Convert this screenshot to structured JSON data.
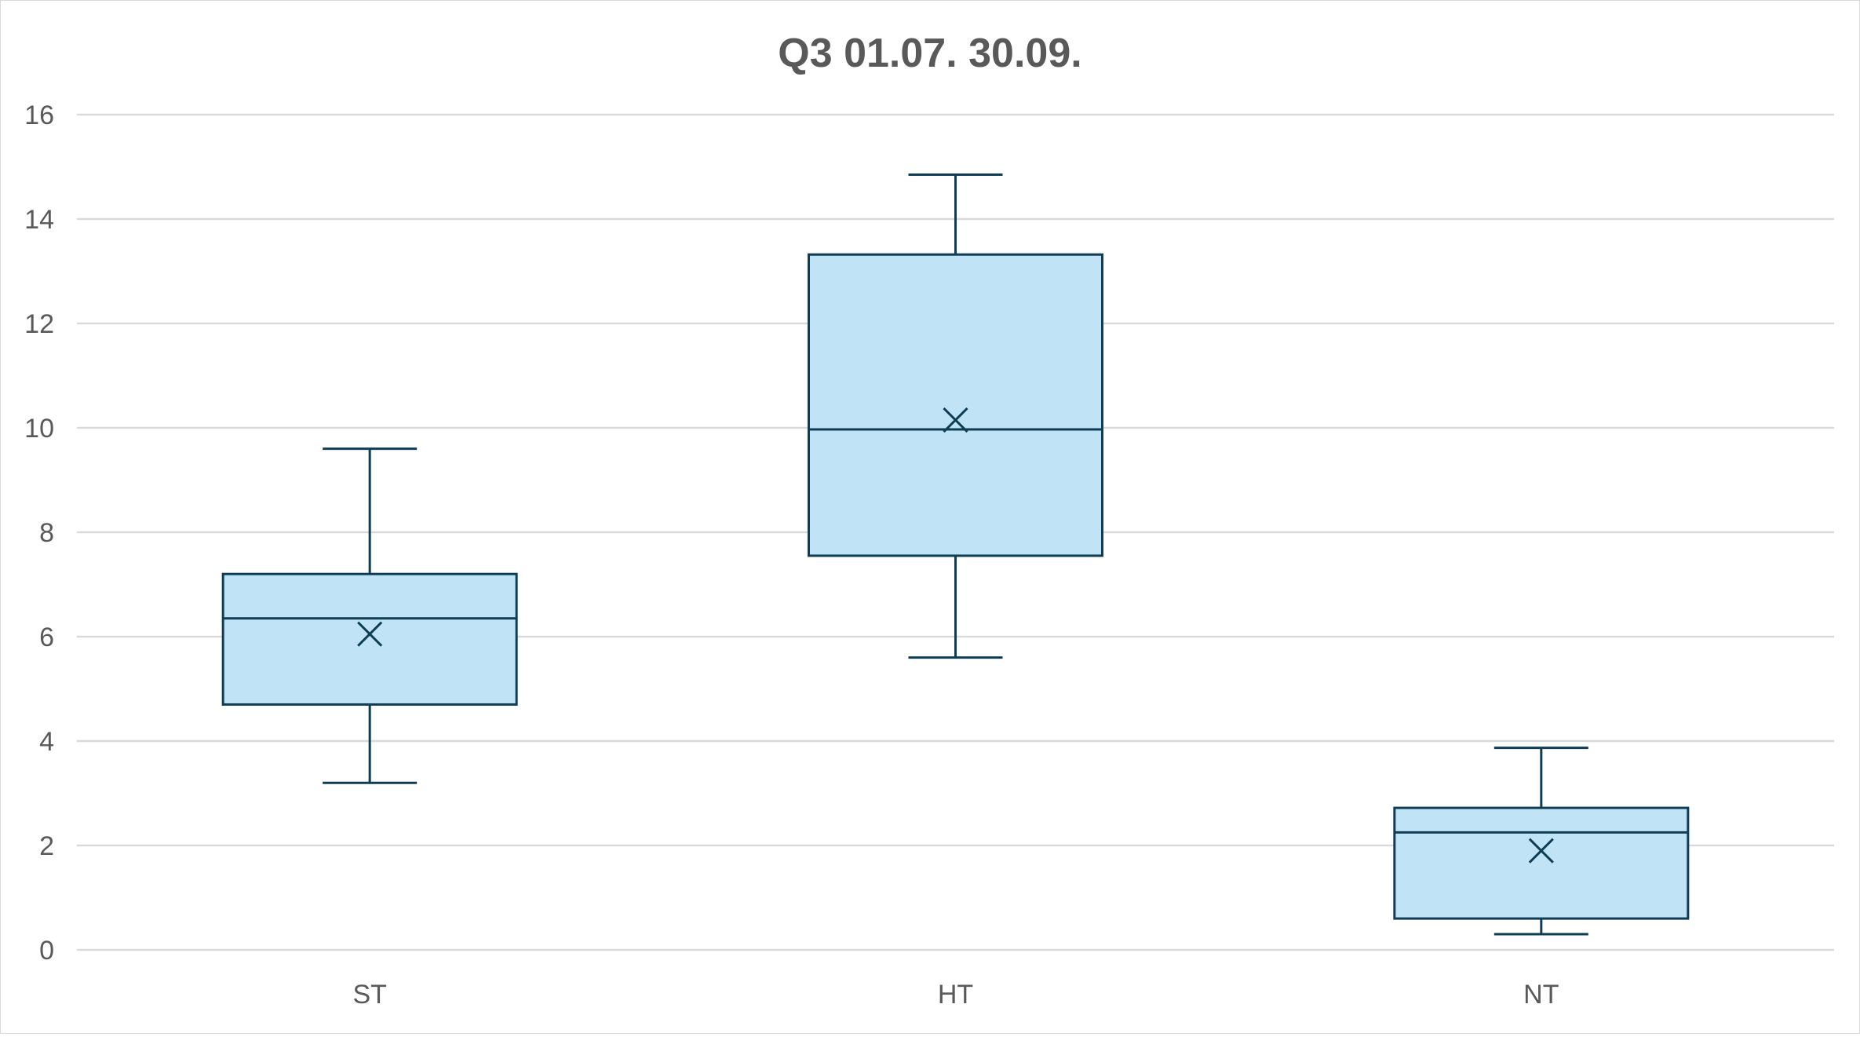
{
  "chart_data": {
    "type": "boxplot",
    "title": "Q3 01.07.  30.09.",
    "xlabel": "",
    "ylabel": "",
    "ylim": [
      0,
      16
    ],
    "yticks": [
      0,
      2,
      4,
      6,
      8,
      10,
      12,
      14,
      16
    ],
    "grid": true,
    "categories": [
      "ST",
      "HT",
      "NT"
    ],
    "boxes": [
      {
        "category": "ST",
        "min": 3.2,
        "q1": 4.7,
        "median": 6.35,
        "q3": 7.2,
        "max": 9.6,
        "mean": 6.05
      },
      {
        "category": "HT",
        "min": 5.6,
        "q1": 7.55,
        "median": 9.97,
        "q3": 13.32,
        "max": 14.85,
        "mean": 10.15
      },
      {
        "category": "NT",
        "min": 0.3,
        "q1": 0.6,
        "median": 2.25,
        "q3": 2.72,
        "max": 3.87,
        "mean": 1.9
      }
    ],
    "colors": {
      "box_fill": "#c0e4f5",
      "box_stroke": "#0e3d55",
      "grid": "#d9d9d9",
      "text": "#595959"
    }
  }
}
